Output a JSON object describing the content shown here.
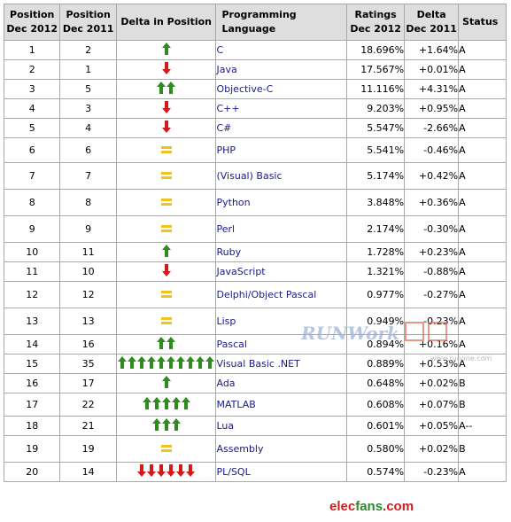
{
  "headers": {
    "pos2012": [
      "Position",
      "Dec 2012"
    ],
    "pos2011": [
      "Position",
      "Dec 2011"
    ],
    "delta_pos": "Delta in Position",
    "language": "Programming Language",
    "ratings": [
      "Ratings",
      "Dec 2012"
    ],
    "delta": [
      "Delta",
      "Dec 2011"
    ],
    "status": "Status"
  },
  "rows": [
    {
      "pos2012": "1",
      "pos2011": "2",
      "lang": "C",
      "rating": "18.696%",
      "delta": "+1.64%",
      "status": "A",
      "move": "up",
      "count": 1
    },
    {
      "pos2012": "2",
      "pos2011": "1",
      "lang": "Java",
      "rating": "17.567%",
      "delta": "+0.01%",
      "status": "A",
      "move": "down",
      "count": 1
    },
    {
      "pos2012": "3",
      "pos2011": "5",
      "lang": "Objective-C",
      "rating": "11.116%",
      "delta": "+4.31%",
      "status": "A",
      "move": "up",
      "count": 2
    },
    {
      "pos2012": "4",
      "pos2011": "3",
      "lang": "C++",
      "rating": "9.203%",
      "delta": "+0.95%",
      "status": "A",
      "move": "down",
      "count": 1
    },
    {
      "pos2012": "5",
      "pos2011": "4",
      "lang": "C#",
      "rating": "5.547%",
      "delta": "-2.66%",
      "status": "A",
      "move": "down",
      "count": 1
    },
    {
      "pos2012": "6",
      "pos2011": "6",
      "lang": "PHP",
      "rating": "5.541%",
      "delta": "-0.46%",
      "status": "A",
      "move": "same",
      "count": 1
    },
    {
      "pos2012": "7",
      "pos2011": "7",
      "lang": "(Visual) Basic",
      "rating": "5.174%",
      "delta": "+0.42%",
      "status": "A",
      "move": "same",
      "count": 1
    },
    {
      "pos2012": "8",
      "pos2011": "8",
      "lang": "Python",
      "rating": "3.848%",
      "delta": "+0.36%",
      "status": "A",
      "move": "same",
      "count": 1
    },
    {
      "pos2012": "9",
      "pos2011": "9",
      "lang": "Perl",
      "rating": "2.174%",
      "delta": "-0.30%",
      "status": "A",
      "move": "same",
      "count": 1
    },
    {
      "pos2012": "10",
      "pos2011": "11",
      "lang": "Ruby",
      "rating": "1.728%",
      "delta": "+0.23%",
      "status": "A",
      "move": "up",
      "count": 1
    },
    {
      "pos2012": "11",
      "pos2011": "10",
      "lang": "JavaScript",
      "rating": "1.321%",
      "delta": "-0.88%",
      "status": "A",
      "move": "down",
      "count": 1
    },
    {
      "pos2012": "12",
      "pos2011": "12",
      "lang": "Delphi/Object Pascal",
      "rating": "0.977%",
      "delta": "-0.27%",
      "status": "A",
      "move": "same",
      "count": 1
    },
    {
      "pos2012": "13",
      "pos2011": "13",
      "lang": "Lisp",
      "rating": "0.949%",
      "delta": "-0.23%",
      "status": "A",
      "move": "same",
      "count": 1
    },
    {
      "pos2012": "14",
      "pos2011": "16",
      "lang": "Pascal",
      "rating": "0.894%",
      "delta": "+0.16%",
      "status": "A",
      "move": "up",
      "count": 2
    },
    {
      "pos2012": "15",
      "pos2011": "35",
      "lang": "Visual Basic .NET",
      "rating": "0.889%",
      "delta": "+0.53%",
      "status": "A",
      "move": "up",
      "count": 10
    },
    {
      "pos2012": "16",
      "pos2011": "17",
      "lang": "Ada",
      "rating": "0.648%",
      "delta": "+0.02%",
      "status": "B",
      "move": "up",
      "count": 1
    },
    {
      "pos2012": "17",
      "pos2011": "22",
      "lang": "MATLAB",
      "rating": "0.608%",
      "delta": "+0.07%",
      "status": "B",
      "move": "up",
      "count": 5
    },
    {
      "pos2012": "18",
      "pos2011": "21",
      "lang": "Lua",
      "rating": "0.601%",
      "delta": "+0.05%",
      "status": "A--",
      "move": "up",
      "count": 3
    },
    {
      "pos2012": "19",
      "pos2011": "19",
      "lang": "Assembly",
      "rating": "0.580%",
      "delta": "+0.02%",
      "status": "B",
      "move": "same",
      "count": 1
    },
    {
      "pos2012": "20",
      "pos2011": "14",
      "lang": "PL/SQL",
      "rating": "0.574%",
      "delta": "-0.23%",
      "status": "A",
      "move": "down",
      "count": 6
    }
  ],
  "colors": {
    "up": "#2e8b1e",
    "down": "#d21a1a",
    "same": "#f2c21b",
    "header_bg": "#dedede",
    "link": "#1a1a8a"
  },
  "watermarks": {
    "runwork": "RUNWork",
    "site": "www.runone.com",
    "elec1": "elec",
    "elec2": "fans",
    "elec3": ".com"
  }
}
